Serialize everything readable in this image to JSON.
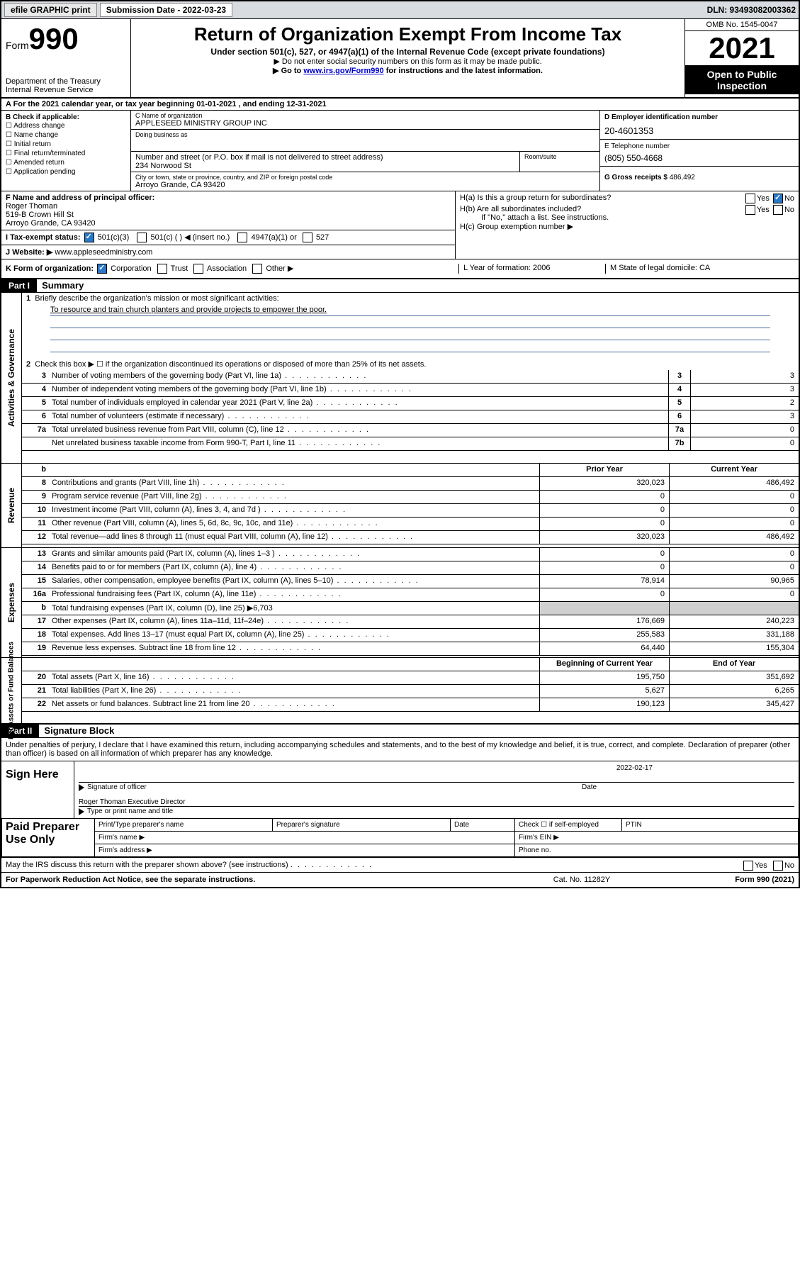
{
  "topbar": {
    "efile": "efile GRAPHIC print",
    "submission": "Submission Date - 2022-03-23",
    "dln": "DLN: 93493082003362"
  },
  "header": {
    "form_prefix": "Form",
    "form_num": "990",
    "dept": "Department of the Treasury",
    "irs": "Internal Revenue Service",
    "title": "Return of Organization Exempt From Income Tax",
    "sub1": "Under section 501(c), 527, or 4947(a)(1) of the Internal Revenue Code (except private foundations)",
    "sub2a": "▶ Do not enter social security numbers on this form as it may be made public.",
    "sub2b_pre": "▶ Go to ",
    "sub2b_link": "www.irs.gov/Form990",
    "sub2b_post": " for instructions and the latest information.",
    "omb": "OMB No. 1545-0047",
    "year": "2021",
    "open": "Open to Public Inspection"
  },
  "row_a": "A For the 2021 calendar year, or tax year beginning 01-01-2021    , and ending 12-31-2021",
  "col_b": {
    "title": "B Check if applicable:",
    "items": [
      "Address change",
      "Name change",
      "Initial return",
      "Final return/terminated",
      "Amended return",
      "Application pending"
    ]
  },
  "col_c": {
    "name_lbl": "C Name of organization",
    "name": "APPLESEED MINISTRY GROUP INC",
    "dba_lbl": "Doing business as",
    "dba": "",
    "addr_lbl": "Number and street (or P.O. box if mail is not delivered to street address)",
    "addr": "234 Norwood St",
    "room_lbl": "Room/suite",
    "city_lbl": "City or town, state or province, country, and ZIP or foreign postal code",
    "city": "Arroyo Grande, CA   93420"
  },
  "col_d": {
    "ein_lbl": "D Employer identification number",
    "ein": "20-4601353",
    "tel_lbl": "E Telephone number",
    "tel": "(805) 550-4668",
    "gross_lbl": "G Gross receipts $",
    "gross": "486,492"
  },
  "block_f": {
    "f_lbl": "F Name and address of principal officer:",
    "f_name": "Roger Thoman",
    "f_addr1": "519-B Crown Hill St",
    "f_addr2": "Arroyo Grande, CA   93420",
    "i_lbl": "I   Tax-exempt status:",
    "i_501c3": "501(c)(3)",
    "i_501c": "501(c) (  ) ◀ (insert no.)",
    "i_4947": "4947(a)(1) or",
    "i_527": "527",
    "j_lbl": "J   Website: ▶",
    "j_val": "www.appleseedministry.com"
  },
  "block_h": {
    "ha": "H(a)  Is this a group return for subordinates?",
    "hb": "H(b)  Are all subordinates included?",
    "hb_note": "If \"No,\" attach a list. See instructions.",
    "hc": "H(c)  Group exemption number ▶",
    "yes": "Yes",
    "no": "No"
  },
  "row_k": {
    "k": "K Form of organization:",
    "corp": "Corporation",
    "trust": "Trust",
    "assoc": "Association",
    "other": "Other ▶",
    "l": "L Year of formation: 2006",
    "m": "M State of legal domicile: CA"
  },
  "part1": {
    "hdr": "Part I",
    "title": "Summary",
    "q1": "Briefly describe the organization's mission or most significant activities:",
    "mission": "To resource and train church planters and provide projects to empower the poor.",
    "q2": "Check this box ▶ ☐  if the organization discontinued its operations or disposed of more than 25% of its net assets.",
    "lines_gov": [
      {
        "n": "3",
        "d": "Number of voting members of the governing body (Part VI, line 1a)",
        "b": "3",
        "v": "3"
      },
      {
        "n": "4",
        "d": "Number of independent voting members of the governing body (Part VI, line 1b)",
        "b": "4",
        "v": "3"
      },
      {
        "n": "5",
        "d": "Total number of individuals employed in calendar year 2021 (Part V, line 2a)",
        "b": "5",
        "v": "2"
      },
      {
        "n": "6",
        "d": "Total number of volunteers (estimate if necessary)",
        "b": "6",
        "v": "3"
      },
      {
        "n": "7a",
        "d": "Total unrelated business revenue from Part VIII, column (C), line 12",
        "b": "7a",
        "v": "0"
      },
      {
        "n": "",
        "d": "Net unrelated business taxable income from Form 990-T, Part I, line 11",
        "b": "7b",
        "v": "0"
      }
    ],
    "hdr_prior": "Prior Year",
    "hdr_curr": "Current Year",
    "rev": [
      {
        "n": "8",
        "d": "Contributions and grants (Part VIII, line 1h)",
        "p": "320,023",
        "c": "486,492"
      },
      {
        "n": "9",
        "d": "Program service revenue (Part VIII, line 2g)",
        "p": "0",
        "c": "0"
      },
      {
        "n": "10",
        "d": "Investment income (Part VIII, column (A), lines 3, 4, and 7d )",
        "p": "0",
        "c": "0"
      },
      {
        "n": "11",
        "d": "Other revenue (Part VIII, column (A), lines 5, 6d, 8c, 9c, 10c, and 11e)",
        "p": "0",
        "c": "0"
      },
      {
        "n": "12",
        "d": "Total revenue—add lines 8 through 11 (must equal Part VIII, column (A), line 12)",
        "p": "320,023",
        "c": "486,492"
      }
    ],
    "exp": [
      {
        "n": "13",
        "d": "Grants and similar amounts paid (Part IX, column (A), lines 1–3 )",
        "p": "0",
        "c": "0"
      },
      {
        "n": "14",
        "d": "Benefits paid to or for members (Part IX, column (A), line 4)",
        "p": "0",
        "c": "0"
      },
      {
        "n": "15",
        "d": "Salaries, other compensation, employee benefits (Part IX, column (A), lines 5–10)",
        "p": "78,914",
        "c": "90,965"
      },
      {
        "n": "16a",
        "d": "Professional fundraising fees (Part IX, column (A), line 11e)",
        "p": "0",
        "c": "0"
      }
    ],
    "exp_b": {
      "n": "b",
      "d": "Total fundraising expenses (Part IX, column (D), line 25) ▶6,703"
    },
    "exp2": [
      {
        "n": "17",
        "d": "Other expenses (Part IX, column (A), lines 11a–11d, 11f–24e)",
        "p": "176,669",
        "c": "240,223"
      },
      {
        "n": "18",
        "d": "Total expenses. Add lines 13–17 (must equal Part IX, column (A), line 25)",
        "p": "255,583",
        "c": "331,188"
      },
      {
        "n": "19",
        "d": "Revenue less expenses. Subtract line 18 from line 12",
        "p": "64,440",
        "c": "155,304"
      }
    ],
    "hdr_beg": "Beginning of Current Year",
    "hdr_end": "End of Year",
    "net": [
      {
        "n": "20",
        "d": "Total assets (Part X, line 16)",
        "p": "195,750",
        "c": "351,692"
      },
      {
        "n": "21",
        "d": "Total liabilities (Part X, line 26)",
        "p": "5,627",
        "c": "6,265"
      },
      {
        "n": "22",
        "d": "Net assets or fund balances. Subtract line 21 from line 20",
        "p": "190,123",
        "c": "345,427"
      }
    ]
  },
  "part2": {
    "hdr": "Part II",
    "title": "Signature Block",
    "decl": "Under penalties of perjury, I declare that I have examined this return, including accompanying schedules and statements, and to the best of my knowledge and belief, it is true, correct, and complete. Declaration of preparer (other than officer) is based on all information of which preparer has any knowledge.",
    "sign_here": "Sign Here",
    "sig_officer": "Signature of officer",
    "sig_date_val": "2022-02-17",
    "sig_date": "Date",
    "sig_name": "Roger Thoman  Executive Director",
    "sig_name_lbl": "Type or print name and title",
    "paid": "Paid Preparer Use Only",
    "p_name": "Print/Type preparer's name",
    "p_sig": "Preparer's signature",
    "p_date": "Date",
    "p_self": "Check ☐ if self-employed",
    "p_ptin": "PTIN",
    "p_firm": "Firm's name   ▶",
    "p_ein": "Firm's EIN ▶",
    "p_addr": "Firm's address ▶",
    "p_phone": "Phone no.",
    "discuss": "May the IRS discuss this return with the preparer shown above? (see instructions)"
  },
  "footer": {
    "l": "For Paperwork Reduction Act Notice, see the separate instructions.",
    "m": "Cat. No. 11282Y",
    "r": "Form 990 (2021)"
  },
  "side": {
    "gov": "Activities & Governance",
    "rev": "Revenue",
    "exp": "Expenses",
    "net": "Net Assets or Fund Balances"
  }
}
